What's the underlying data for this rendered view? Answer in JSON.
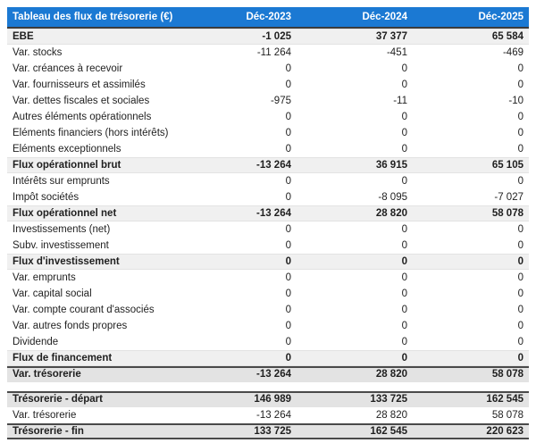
{
  "header": {
    "title": "Tableau des flux de trésorerie (€)",
    "columns": [
      "Déc-2023",
      "Déc-2024",
      "Déc-2025"
    ]
  },
  "colors": {
    "header_bg": "#1b79d3",
    "header_text": "#ffffff",
    "subtotal_row_bg": "#f0f0f0",
    "summary_row_bg": "#e3e3e3",
    "dark_border": "#4a4a4a",
    "body_text": "#1f1f1f"
  },
  "table": {
    "sections": [
      {
        "rows": [
          {
            "label": "EBE",
            "values": [
              "-1 025",
              "37 377",
              "65 584"
            ],
            "style": "subtotal"
          },
          {
            "label": "Var. stocks",
            "values": [
              "-11 264",
              "-451",
              "-469"
            ],
            "style": "normal"
          },
          {
            "label": "Var. créances à recevoir",
            "values": [
              "0",
              "0",
              "0"
            ],
            "style": "normal"
          },
          {
            "label": "Var. fournisseurs et assimilés",
            "values": [
              "0",
              "0",
              "0"
            ],
            "style": "normal"
          },
          {
            "label": "Var. dettes fiscales et sociales",
            "values": [
              "-975",
              "-11",
              "-10"
            ],
            "style": "normal"
          },
          {
            "label": "Autres éléments opérationnels",
            "values": [
              "0",
              "0",
              "0"
            ],
            "style": "normal"
          },
          {
            "label": "Eléments financiers (hors intérêts)",
            "values": [
              "0",
              "0",
              "0"
            ],
            "style": "normal"
          },
          {
            "label": "Eléments exceptionnels",
            "values": [
              "0",
              "0",
              "0"
            ],
            "style": "normal"
          },
          {
            "label": "Flux opérationnel brut",
            "values": [
              "-13 264",
              "36 915",
              "65 105"
            ],
            "style": "subtotal"
          },
          {
            "label": "Intérêts sur emprunts",
            "values": [
              "0",
              "0",
              "0"
            ],
            "style": "normal"
          },
          {
            "label": "Impôt sociétés",
            "values": [
              "0",
              "-8 095",
              "-7 027"
            ],
            "style": "normal"
          },
          {
            "label": "Flux opérationnel net",
            "values": [
              "-13 264",
              "28 820",
              "58 078"
            ],
            "style": "subtotal"
          },
          {
            "label": "Investissements (net)",
            "values": [
              "0",
              "0",
              "0"
            ],
            "style": "normal"
          },
          {
            "label": "Subv. investissement",
            "values": [
              "0",
              "0",
              "0"
            ],
            "style": "normal"
          },
          {
            "label": "Flux d'investissement",
            "values": [
              "0",
              "0",
              "0"
            ],
            "style": "subtotal"
          },
          {
            "label": "Var. emprunts",
            "values": [
              "0",
              "0",
              "0"
            ],
            "style": "normal"
          },
          {
            "label": "Var. capital social",
            "values": [
              "0",
              "0",
              "0"
            ],
            "style": "normal"
          },
          {
            "label": "Var. compte courant d'associés",
            "values": [
              "0",
              "0",
              "0"
            ],
            "style": "normal"
          },
          {
            "label": "Var. autres fonds propres",
            "values": [
              "0",
              "0",
              "0"
            ],
            "style": "normal"
          },
          {
            "label": "Dividende",
            "values": [
              "0",
              "0",
              "0"
            ],
            "style": "normal"
          },
          {
            "label": "Flux de financement",
            "values": [
              "0",
              "0",
              "0"
            ],
            "style": "subtotal"
          },
          {
            "label": "Var. trésorerie",
            "values": [
              "-13 264",
              "28 820",
              "58 078"
            ],
            "style": "summary"
          }
        ]
      },
      {
        "rows": [
          {
            "label": "Trésorerie - départ",
            "values": [
              "146 989",
              "133 725",
              "162 545"
            ],
            "style": "summary"
          },
          {
            "label": "Var. trésorerie",
            "values": [
              "-13 264",
              "28 820",
              "58 078"
            ],
            "style": "normal"
          },
          {
            "label": "Trésorerie - fin",
            "values": [
              "133 725",
              "162 545",
              "220 623"
            ],
            "style": "summary-end"
          }
        ]
      }
    ]
  }
}
